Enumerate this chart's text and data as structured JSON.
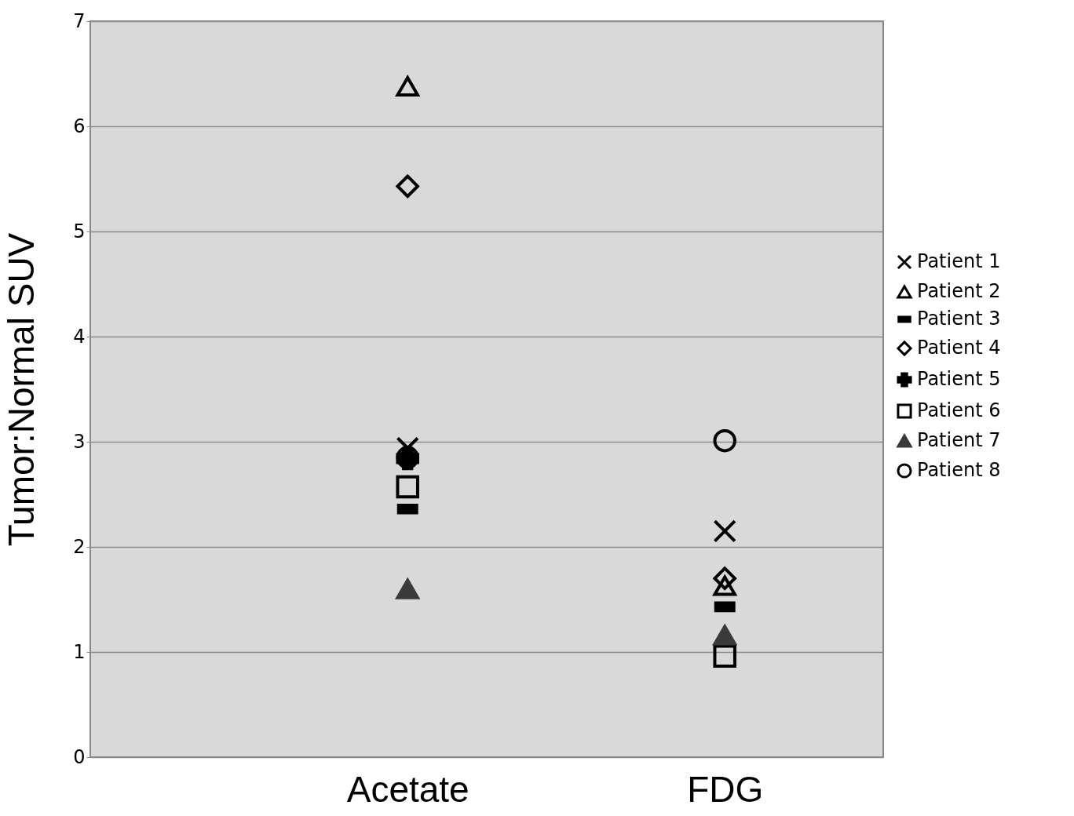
{
  "chart_data": {
    "type": "scatter",
    "ylabel": "Tumor:Normal SUV",
    "categories": [
      "Acetate",
      "FDG"
    ],
    "ylim": [
      0,
      7
    ],
    "yticks": [
      0,
      1,
      2,
      3,
      4,
      5,
      6,
      7
    ],
    "grid": "y",
    "legend": "right",
    "series": [
      {
        "name": "Patient 1",
        "color": "#000000",
        "marker": "x",
        "values": [
          2.94,
          2.15
        ]
      },
      {
        "name": "Patient 2",
        "color": "#000000",
        "marker": "triangle",
        "values": [
          6.38,
          1.63
        ]
      },
      {
        "name": "Patient 3",
        "color": "#000000",
        "values": [
          2.36,
          1.43
        ]
      },
      {
        "name": "Patient 4",
        "color": "#000000",
        "marker": "diamond",
        "values": [
          5.43,
          1.7
        ]
      },
      {
        "name": "Patient 5",
        "color": "#000000",
        "marker": "cross",
        "values": [
          2.84,
          null
        ]
      },
      {
        "name": "Patient 6",
        "color": "#000000",
        "marker": "square",
        "values": [
          2.57,
          0.96
        ]
      },
      {
        "name": "Patient 7",
        "color": "#3a3a3a",
        "marker": "triangle",
        "values": [
          1.6,
          1.16
        ]
      },
      {
        "name": "Patient 8",
        "color": "#000000",
        "marker": "circle",
        "values": [
          2.85,
          3.01
        ]
      }
    ]
  }
}
